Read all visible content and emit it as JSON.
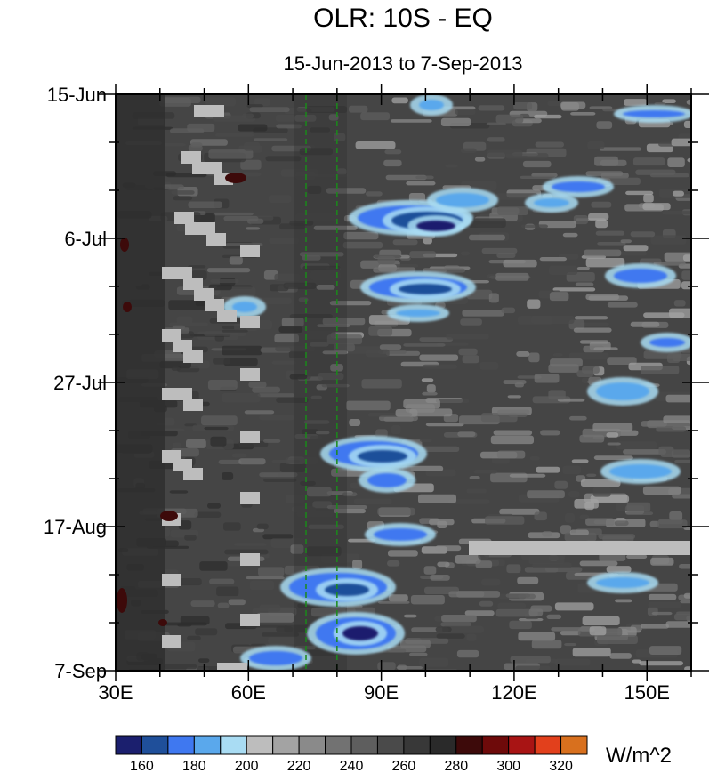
{
  "chart_data": {
    "type": "heatmap",
    "title": "OLR: 10S - EQ",
    "subtitle": "15-Jun-2013 to 7-Sep-2013",
    "x_ticks": [
      "30E",
      "60E",
      "90E",
      "120E",
      "150E"
    ],
    "y_ticks": [
      "15-Jun",
      "6-Jul",
      "27-Jul",
      "17-Aug",
      "7-Sep"
    ],
    "xlim": [
      30,
      160
    ],
    "ylim": [
      "15-Jun-2013",
      "7-Sep-2013"
    ],
    "units": "W/m^2",
    "colorbar": {
      "levels": [
        160,
        170,
        180,
        190,
        200,
        210,
        220,
        230,
        240,
        250,
        260,
        270,
        280,
        290,
        300,
        310,
        320
      ],
      "labels": [
        "160",
        "180",
        "200",
        "220",
        "240",
        "260",
        "280",
        "300",
        "320"
      ],
      "colors": [
        "#1b1f6e",
        "#1f4f9a",
        "#3f78f0",
        "#5aa8ec",
        "#a9dcf3",
        "#bdbdbd",
        "#a3a3a3",
        "#8a8a8a",
        "#727272",
        "#5e5e5e",
        "#4a4a4a",
        "#383838",
        "#2a2a2a",
        "#3d0a0a",
        "#6e0a0a",
        "#a81414",
        "#e2401c",
        "#d8701e"
      ]
    },
    "reference_lines_x": [
      73,
      80
    ],
    "grid": false
  }
}
